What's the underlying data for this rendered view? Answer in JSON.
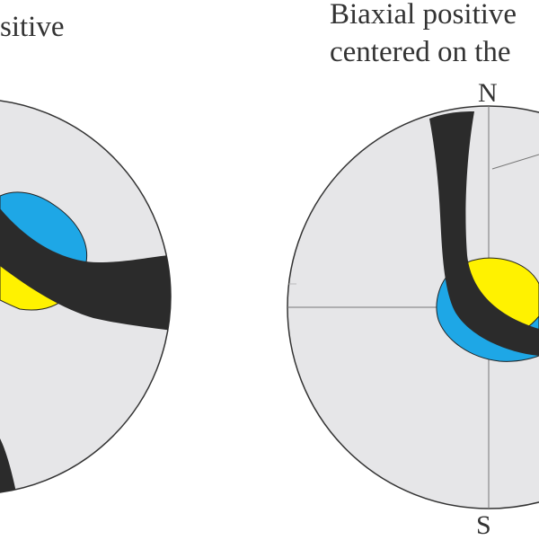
{
  "left_figure": {
    "title_fragment": "sitive"
  },
  "right_figure": {
    "title_line1": "Biaxial positive",
    "title_line2": "centered on the",
    "compass_north": "N",
    "compass_south": "S"
  },
  "colors": {
    "sphere_fill": "#e6e6e8",
    "sphere_stroke": "#333333",
    "isogyre_band": "#2b2b2b",
    "yellow_region": "#fff200",
    "blue_region": "#1ea7e6",
    "grid_line": "#777777"
  }
}
